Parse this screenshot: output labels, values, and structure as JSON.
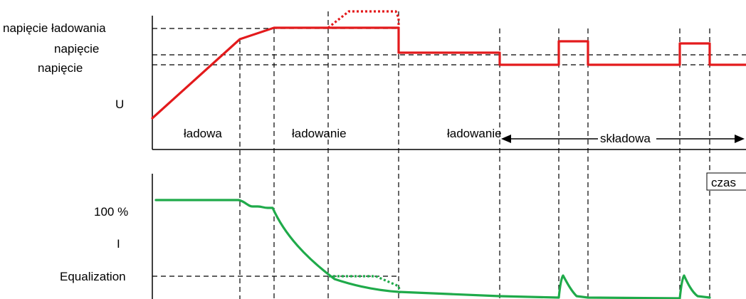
{
  "colors": {
    "voltage_curve": "#e31a1c",
    "current_curve": "#1faa4a",
    "guides": "#000000"
  },
  "voltage_panel": {
    "axis_label": "U",
    "level_labels": [
      "napięcie ładowania",
      "napięcie",
      "napięcie"
    ],
    "stage_labels": [
      "ładowa",
      "ładowanie",
      "ładowanie"
    ],
    "float_span_label": "składowa",
    "time_label": "czas"
  },
  "current_panel": {
    "axis_label": "I",
    "level_100": "100 %",
    "level_equalization": "Equalization"
  }
}
